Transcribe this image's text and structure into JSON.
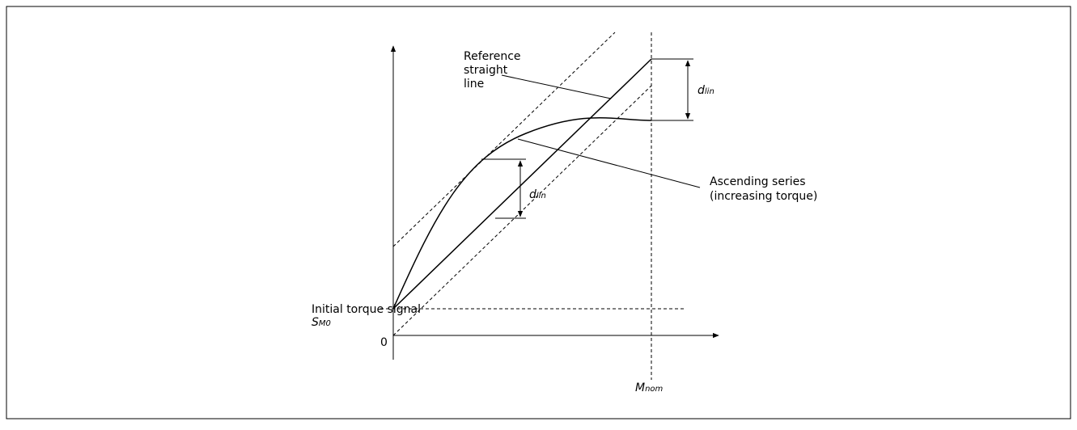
{
  "labels": {
    "reference": [
      "Reference",
      "straight",
      "line"
    ],
    "dlin": {
      "symbol": "d",
      "subscript": "lin"
    },
    "ascending": [
      "Ascending series",
      "(increasing torque)"
    ],
    "initial": "Initial torque signal",
    "sm0": {
      "symbol": "S",
      "subscript": "M0"
    },
    "origin": "0",
    "mnom": {
      "symbol": "M",
      "subscript": "nom"
    }
  }
}
